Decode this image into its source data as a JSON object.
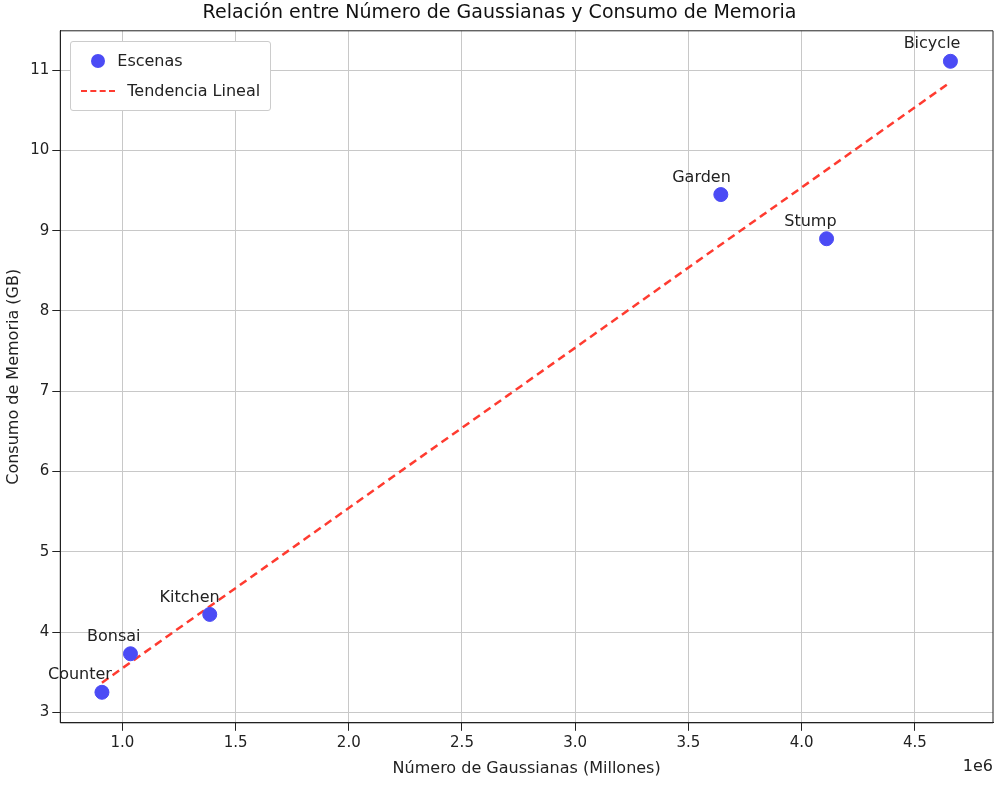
{
  "chart_data": {
    "type": "scatter",
    "title": "Relación entre Número de Gaussianas y Consumo de Memoria",
    "xlabel": "Número de Gaussianas (Millones)",
    "ylabel": "Consumo de Memoria (GB)",
    "series": [
      {
        "name": "Escenas",
        "color": "#4b4bf5",
        "marker": "circle",
        "x": [
          0.91,
          1.036,
          1.386,
          3.643,
          4.11,
          4.657
        ],
        "values": [
          3.25,
          3.73,
          4.22,
          9.45,
          8.9,
          11.11
        ]
      },
      {
        "name": "Tendencia Lineal",
        "type": "line",
        "color": "#ff3b30",
        "line_style": "dashed",
        "marker": "none",
        "x": [
          0.91,
          4.657
        ],
        "values": [
          3.37,
          10.85
        ]
      }
    ],
    "xlim": [
      0.726,
      4.845
    ],
    "ylim": [
      2.87,
      11.49
    ],
    "xticks": [
      {
        "value": 1,
        "label": "1.0"
      },
      1.5,
      {
        "value": 2,
        "label": "2.0"
      },
      2.5,
      {
        "value": 3,
        "label": "3.0"
      },
      3.5,
      {
        "value": 4,
        "label": "4.0"
      },
      4.5
    ],
    "yticks": [
      3,
      4,
      5,
      6,
      7,
      8,
      9,
      10,
      11
    ],
    "grid": true,
    "legend": "top left",
    "annotations": [
      {
        "text": "Counter",
        "x": 0.91,
        "y": 3.25
      },
      {
        "text": "Bonsai",
        "x": 1.036,
        "y": 3.73
      },
      {
        "text": "Kitchen",
        "x": 1.386,
        "y": 4.22
      },
      {
        "text": "Garden",
        "x": 3.643,
        "y": 9.45
      },
      {
        "text": "Stump",
        "x": 4.11,
        "y": 8.9
      },
      {
        "text": "Bicycle",
        "x": 4.657,
        "y": 11.11
      },
      "1e6"
    ]
  }
}
